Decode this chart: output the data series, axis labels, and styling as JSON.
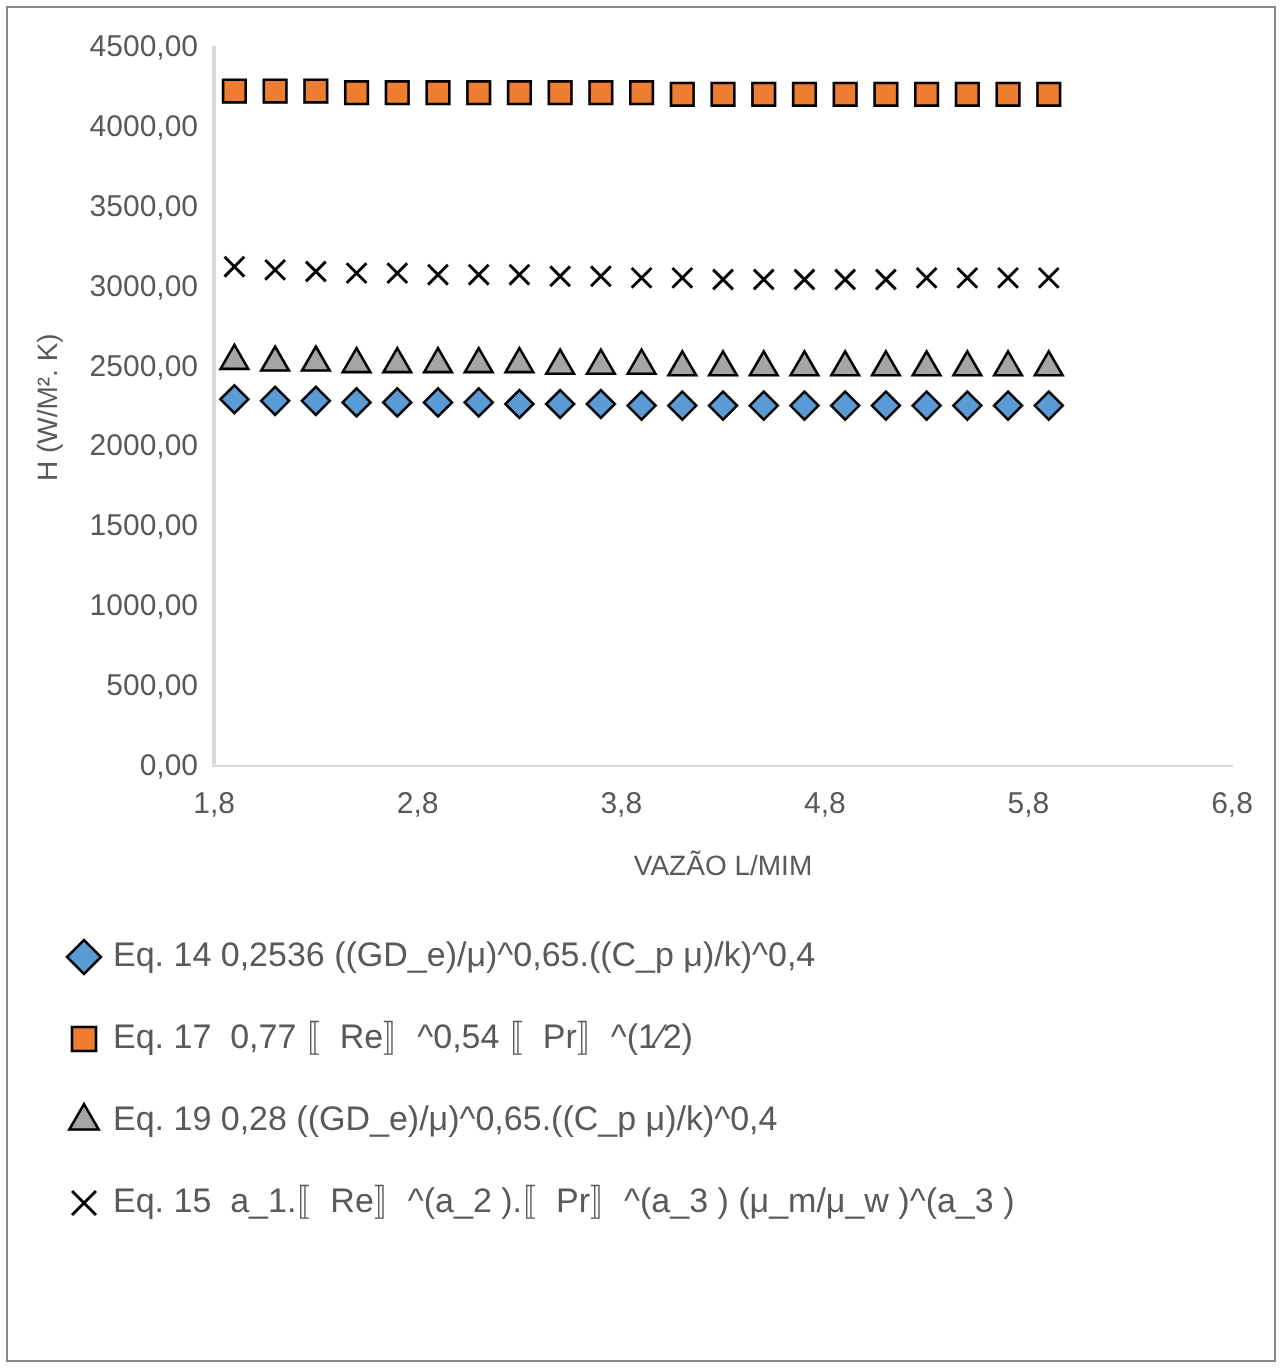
{
  "chart_data": {
    "type": "scatter",
    "xlabel": "VAZÃO L/MIM",
    "ylabel": "H (W/M². K)",
    "x": [
      1.9,
      2.1,
      2.3,
      2.5,
      2.7,
      2.9,
      3.1,
      3.3,
      3.5,
      3.7,
      3.9,
      4.1,
      4.3,
      4.5,
      4.7,
      4.9,
      5.1,
      5.3,
      5.5,
      5.7,
      5.9
    ],
    "series": [
      {
        "name": "Eq. 14 0,2536 ((GD_e)/μ)^0,65.((C_p μ)/k)^0,4",
        "color": "#5b9bd5",
        "marker": "diamond",
        "values": [
          2300,
          2290,
          2290,
          2280,
          2280,
          2280,
          2280,
          2270,
          2270,
          2270,
          2260,
          2260,
          2260,
          2260,
          2260,
          2260,
          2260,
          2260,
          2260,
          2260,
          2260
        ]
      },
      {
        "name": "Eq. 17  0,77 〚Re〛^0,54 〚Pr〛^(1⁄2)",
        "color": "#ed7d31",
        "marker": "square",
        "values": [
          4230,
          4230,
          4230,
          4220,
          4220,
          4220,
          4220,
          4220,
          4220,
          4220,
          4220,
          4210,
          4210,
          4210,
          4210,
          4210,
          4210,
          4210,
          4210,
          4210,
          4210
        ]
      },
      {
        "name": "Eq. 19 0,28 ((GD_e)/μ)^0,65.((C_p μ)/k)^0,4",
        "color": "#a5a5a5",
        "marker": "triangle",
        "values": [
          2540,
          2530,
          2530,
          2520,
          2520,
          2520,
          2520,
          2520,
          2510,
          2510,
          2510,
          2500,
          2500,
          2500,
          2500,
          2500,
          2500,
          2500,
          2500,
          2500,
          2500
        ]
      },
      {
        "name": "Eq. 15  a_1.〚Re〛^(a_2 ).〚Pr〛^(a_3 ) (μ_m/μ_w )^(a_3 )",
        "color": "#000000",
        "marker": "cross",
        "values": [
          3130,
          3110,
          3100,
          3090,
          3090,
          3080,
          3080,
          3080,
          3070,
          3070,
          3060,
          3060,
          3050,
          3050,
          3050,
          3050,
          3050,
          3060,
          3060,
          3060,
          3060
        ]
      }
    ],
    "xlim": [
      1.8,
      6.8
    ],
    "xticks": [
      {
        "value": 1.8,
        "label": "1,8"
      },
      {
        "value": 2.8,
        "label": "2,8"
      },
      {
        "value": 3.8,
        "label": "3,8"
      },
      {
        "value": 4.8,
        "label": "4,8"
      },
      {
        "value": 5.8,
        "label": "5,8"
      },
      {
        "value": 6.8,
        "label": "6,8"
      }
    ],
    "ylim": [
      0,
      4500
    ],
    "yticks": [
      {
        "value": 0,
        "label": "0,00"
      },
      {
        "value": 500,
        "label": "500,00"
      },
      {
        "value": 1000,
        "label": "1000,00"
      },
      {
        "value": 1500,
        "label": "1500,00"
      },
      {
        "value": 2000,
        "label": "2000,00"
      },
      {
        "value": 2500,
        "label": "2500,00"
      },
      {
        "value": 3000,
        "label": "3000,00"
      },
      {
        "value": 3500,
        "label": "3500,00"
      },
      {
        "value": 4000,
        "label": "4000,00"
      },
      {
        "value": 4500,
        "label": "4500,00"
      }
    ],
    "grid": false,
    "legend": "bottom"
  }
}
